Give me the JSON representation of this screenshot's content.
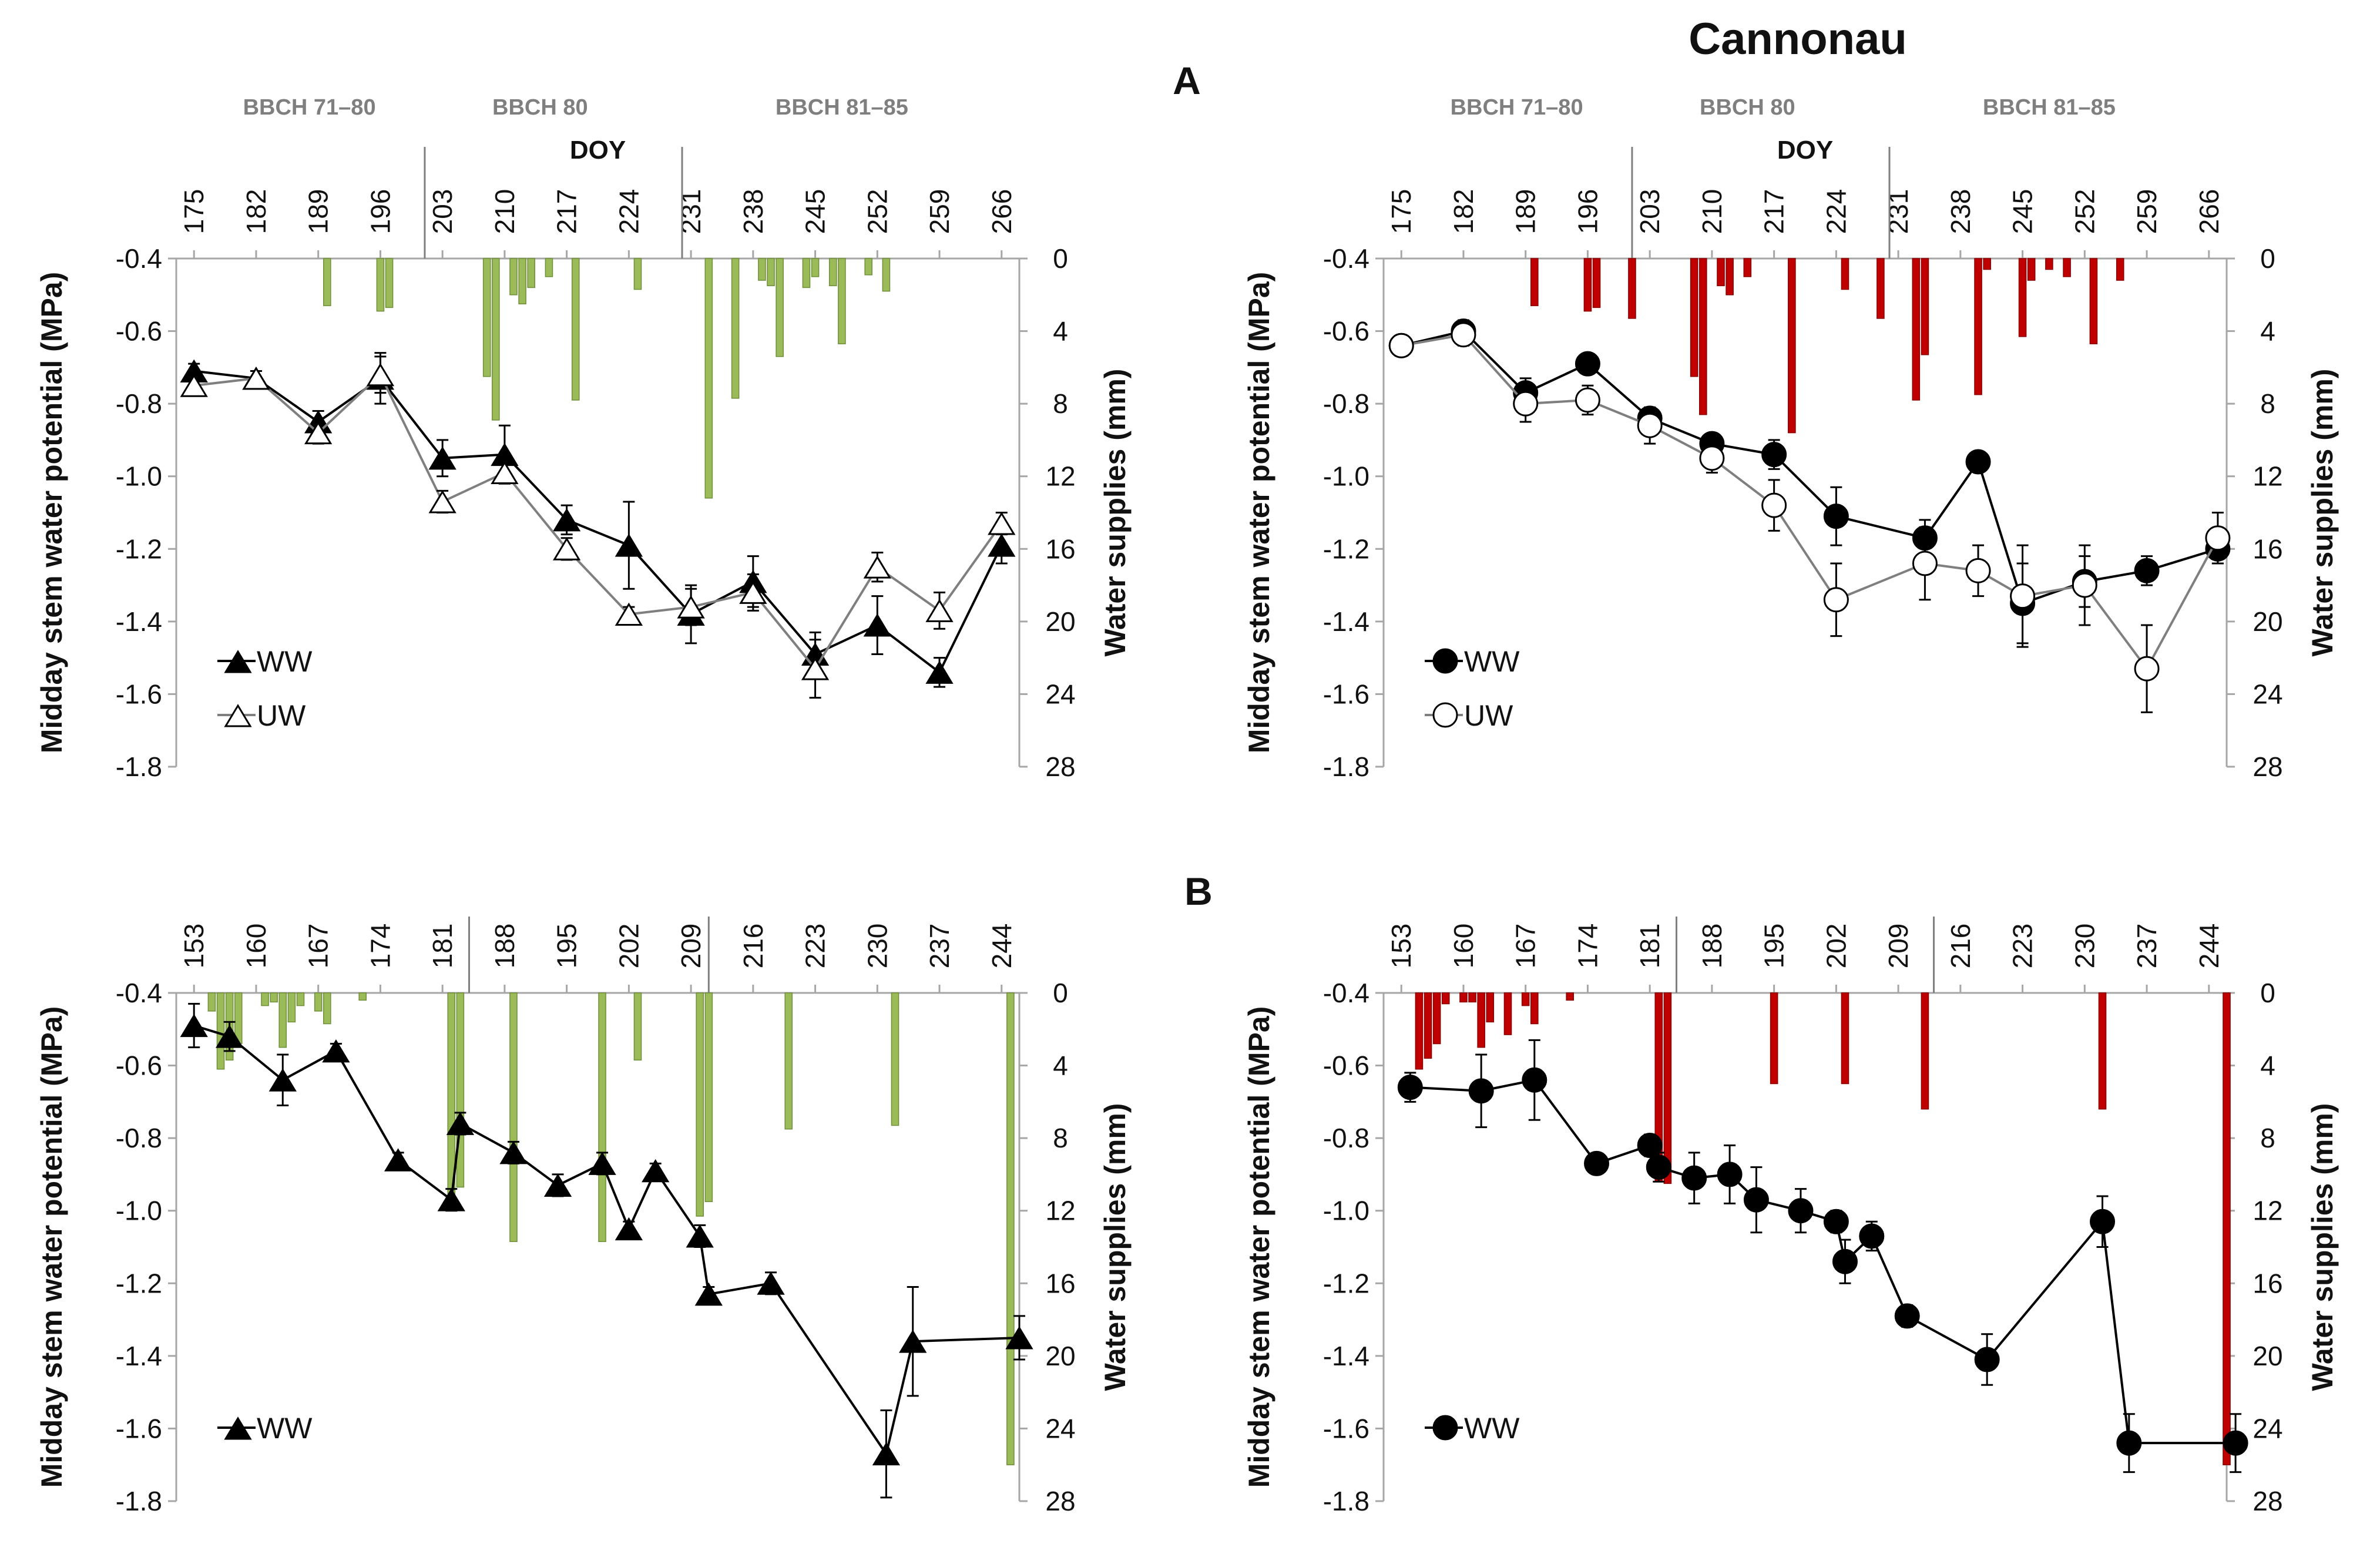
{
  "figure": {
    "cultivar_title": "Cannonau",
    "label_A": "A",
    "label_B": "B",
    "ylabel_left": "Midday stem water potential (MPa)",
    "ylabel_right": "Water supplies (mm)",
    "doy_label": "DOY",
    "colors": {
      "green": "#9bbb59",
      "red": "#c00000",
      "line_ww": "#000000",
      "line_uw": "#7f7f7f"
    }
  },
  "chart_data": [
    {
      "id": "A-left",
      "type": "line",
      "bar_color": "green",
      "marker": "triangle",
      "x_ticks": [
        "175",
        "182",
        "189",
        "196",
        "203",
        "210",
        "217",
        "224",
        "231",
        "238",
        "245",
        "252",
        "259",
        "266"
      ],
      "xlim": [
        173,
        268
      ],
      "y_ticks": [
        "-0.4",
        "-0.6",
        "-0.8",
        "-1.0",
        "-1.2",
        "-1.4",
        "-1.6",
        "-1.8"
      ],
      "ylim": [
        -1.8,
        -0.4
      ],
      "y2_ticks": [
        "0",
        "4",
        "8",
        "12",
        "16",
        "20",
        "24",
        "28"
      ],
      "y2lim": [
        0,
        28
      ],
      "stages": [
        {
          "label": "BBCH 71–80",
          "center": 188
        },
        {
          "label": "BBCH 80",
          "center": 214
        },
        {
          "label": "BBCH 81–85",
          "center": 248
        }
      ],
      "stage_dividers": [
        201,
        230
      ],
      "legend": [
        "WW",
        "UW"
      ],
      "series": [
        {
          "name": "WW",
          "filled": true,
          "x": [
            175,
            182,
            189,
            196,
            203,
            210,
            217,
            224,
            231,
            238,
            245,
            252,
            259,
            266
          ],
          "y": [
            -0.71,
            -0.73,
            -0.85,
            -0.73,
            -0.95,
            -0.94,
            -1.12,
            -1.19,
            -1.38,
            -1.29,
            -1.49,
            -1.41,
            -1.54,
            -1.19
          ],
          "err": [
            0.02,
            0.02,
            0.03,
            0.07,
            0.05,
            0.08,
            0.04,
            0.12,
            0.08,
            0.07,
            0.06,
            0.08,
            0.04,
            0.05
          ]
        },
        {
          "name": "UW",
          "filled": false,
          "x": [
            175,
            182,
            189,
            196,
            203,
            210,
            217,
            224,
            231,
            238,
            245,
            252,
            259,
            266
          ],
          "y": [
            -0.75,
            -0.73,
            -0.88,
            -0.72,
            -1.07,
            -0.99,
            -1.2,
            -1.38,
            -1.36,
            -1.32,
            -1.53,
            -1.25,
            -1.37,
            -1.13
          ],
          "err": [
            0.02,
            0.02,
            0.03,
            0.05,
            0.03,
            0.03,
            0.03,
            0.02,
            0.05,
            0.05,
            0.08,
            0.04,
            0.05,
            0.03
          ]
        }
      ],
      "bars": {
        "x": [
          190,
          196,
          197,
          208,
          209,
          211,
          212,
          213,
          215,
          218,
          225,
          233,
          236,
          239,
          240,
          241,
          244,
          245,
          247,
          248,
          251,
          253
        ],
        "v": [
          2.6,
          2.9,
          2.7,
          6.5,
          8.9,
          2.0,
          2.5,
          1.6,
          1.0,
          7.8,
          1.7,
          13.2,
          7.7,
          1.2,
          1.5,
          5.4,
          1.6,
          1.0,
          1.5,
          4.7,
          0.9,
          1.8
        ]
      }
    },
    {
      "id": "A-right",
      "type": "line",
      "bar_color": "red",
      "marker": "circle",
      "x_ticks": [
        "175",
        "182",
        "189",
        "196",
        "203",
        "210",
        "217",
        "224",
        "231",
        "238",
        "245",
        "252",
        "259",
        "266"
      ],
      "xlim": [
        173,
        268
      ],
      "y_ticks": [
        "-0.4",
        "-0.6",
        "-0.8",
        "-1.0",
        "-1.2",
        "-1.4",
        "-1.6",
        "-1.8"
      ],
      "ylim": [
        -1.8,
        -0.4
      ],
      "y2_ticks": [
        "0",
        "4",
        "8",
        "12",
        "16",
        "20",
        "24",
        "28"
      ],
      "y2lim": [
        0,
        28
      ],
      "stages": [
        {
          "label": "BBCH 71–80",
          "center": 188
        },
        {
          "label": "BBCH 80",
          "center": 214
        },
        {
          "label": "BBCH 81–85",
          "center": 248
        }
      ],
      "stage_dividers": [
        201,
        230
      ],
      "legend": [
        "WW",
        "UW"
      ],
      "series": [
        {
          "name": "WW",
          "filled": true,
          "x": [
            175,
            182,
            189,
            196,
            203,
            210,
            217,
            224,
            234,
            240,
            245,
            252,
            259,
            267
          ],
          "y": [
            -0.64,
            -0.6,
            -0.77,
            -0.69,
            -0.84,
            -0.91,
            -0.94,
            -1.11,
            -1.17,
            -0.96,
            -1.35,
            -1.29,
            -1.26,
            -1.2
          ],
          "err": [
            0.02,
            0.03,
            0.04,
            0.02,
            0.03,
            0.02,
            0.04,
            0.08,
            0.05,
            0.02,
            0.11,
            0.07,
            0.04,
            0.04
          ]
        },
        {
          "name": "UW",
          "filled": false,
          "x": [
            175,
            182,
            189,
            196,
            203,
            210,
            217,
            224,
            234,
            240,
            245,
            252,
            259,
            267
          ],
          "y": [
            -0.64,
            -0.61,
            -0.8,
            -0.79,
            -0.86,
            -0.95,
            -1.08,
            -1.34,
            -1.24,
            -1.26,
            -1.33,
            -1.3,
            -1.53,
            -1.17
          ],
          "err": [
            0.02,
            0.03,
            0.05,
            0.04,
            0.05,
            0.04,
            0.07,
            0.1,
            0.1,
            0.07,
            0.14,
            0.11,
            0.12,
            0.07
          ]
        }
      ],
      "bars": {
        "x": [
          190,
          196,
          197,
          201,
          208,
          209,
          211,
          212,
          214,
          219,
          225,
          229,
          233,
          234,
          240,
          241,
          245,
          246,
          248,
          250,
          253,
          256
        ],
        "v": [
          2.6,
          2.9,
          2.7,
          3.3,
          6.5,
          8.6,
          1.5,
          2.0,
          1.0,
          9.6,
          1.7,
          3.3,
          7.8,
          5.3,
          7.5,
          0.6,
          4.3,
          1.2,
          0.6,
          1.0,
          4.7,
          1.2
        ]
      }
    },
    {
      "id": "B-left",
      "type": "line",
      "bar_color": "green",
      "marker": "triangle",
      "x_ticks": [
        "153",
        "160",
        "167",
        "174",
        "181",
        "188",
        "195",
        "202",
        "209",
        "216",
        "223",
        "230",
        "237",
        "244"
      ],
      "xlim": [
        151,
        246
      ],
      "y_ticks": [
        "-0.4",
        "-0.6",
        "-0.8",
        "-1.0",
        "-1.2",
        "-1.4",
        "-1.6",
        "-1.8"
      ],
      "ylim": [
        -1.8,
        -0.4
      ],
      "y2_ticks": [
        "0",
        "4",
        "8",
        "12",
        "16",
        "20",
        "24",
        "28"
      ],
      "y2lim": [
        0,
        28
      ],
      "stage_dividers": [
        184,
        211
      ],
      "legend": [
        "WW"
      ],
      "series": [
        {
          "name": "WW",
          "filled": true,
          "x": [
            153,
            157,
            163,
            169,
            176,
            182,
            183,
            189,
            194,
            199,
            202,
            205,
            210,
            211,
            218,
            231,
            234,
            246
          ],
          "y": [
            -0.49,
            -0.52,
            -0.64,
            -0.56,
            -0.86,
            -0.97,
            -0.76,
            -0.84,
            -0.93,
            -0.87,
            -1.05,
            -0.89,
            -1.07,
            -1.23,
            -1.2,
            -1.67,
            -1.36,
            -1.35
          ],
          "err": [
            0.06,
            0.04,
            0.07,
            0.02,
            0.02,
            0.03,
            0.03,
            0.03,
            0.03,
            0.03,
            0.02,
            0.02,
            0.03,
            0.02,
            0.03,
            0.12,
            0.15,
            0.06
          ]
        },
        {
          "name": "UW",
          "filled": false,
          "x": [],
          "y": [],
          "err": []
        }
      ],
      "bars": {
        "x": [
          155,
          156,
          157,
          158,
          161,
          162,
          163,
          164,
          165,
          167,
          168,
          172,
          182,
          183,
          189,
          199,
          203,
          210,
          211,
          220,
          232,
          245
        ],
        "v": [
          1.0,
          4.2,
          3.7,
          2.8,
          0.7,
          0.5,
          3.0,
          1.6,
          0.7,
          1.0,
          1.7,
          0.4,
          11.2,
          10.7,
          13.7,
          13.7,
          3.7,
          12.3,
          11.5,
          7.5,
          7.3,
          26.0
        ]
      }
    },
    {
      "id": "B-right",
      "type": "line",
      "bar_color": "red",
      "marker": "circle",
      "x_ticks": [
        "153",
        "160",
        "167",
        "174",
        "181",
        "188",
        "195",
        "202",
        "209",
        "216",
        "223",
        "230",
        "237",
        "244"
      ],
      "xlim": [
        151,
        246
      ],
      "y_ticks": [
        "-0.4",
        "-0.6",
        "-0.8",
        "-1.0",
        "-1.2",
        "-1.4",
        "-1.6",
        "-1.8"
      ],
      "ylim": [
        -1.8,
        -0.4
      ],
      "y2_ticks": [
        "0",
        "4",
        "8",
        "12",
        "16",
        "20",
        "24",
        "28"
      ],
      "y2lim": [
        0,
        28
      ],
      "stage_dividers": [
        184,
        213
      ],
      "legend": [
        "WW"
      ],
      "series": [
        {
          "name": "WW",
          "filled": true,
          "x": [
            154,
            162,
            168,
            175,
            181,
            182,
            186,
            190,
            193,
            198,
            202,
            203,
            206,
            210,
            219,
            232,
            235,
            247
          ],
          "y": [
            -0.66,
            -0.67,
            -0.64,
            -0.87,
            -0.82,
            -0.88,
            -0.91,
            -0.9,
            -0.97,
            -1.0,
            -1.03,
            -1.14,
            -1.07,
            -1.29,
            -1.41,
            -1.03,
            -1.64,
            -1.64
          ],
          "err": [
            0.04,
            0.1,
            0.11,
            0.02,
            0.03,
            0.04,
            0.07,
            0.08,
            0.09,
            0.06,
            0.03,
            0.06,
            0.04,
            0.03,
            0.07,
            0.07,
            0.08,
            0.08
          ]
        },
        {
          "name": "UW",
          "filled": false,
          "x": [],
          "y": [],
          "err": []
        }
      ],
      "bars": {
        "x": [
          155,
          156,
          157,
          158,
          160,
          161,
          162,
          163,
          165,
          167,
          168,
          172,
          182,
          183,
          195,
          203,
          212,
          232,
          246
        ],
        "v": [
          4.2,
          3.6,
          2.8,
          0.6,
          0.5,
          0.5,
          3.0,
          1.6,
          2.3,
          0.7,
          1.7,
          0.4,
          10.4,
          10.5,
          5.0,
          5.0,
          6.4,
          6.4,
          26.0
        ]
      }
    }
  ]
}
